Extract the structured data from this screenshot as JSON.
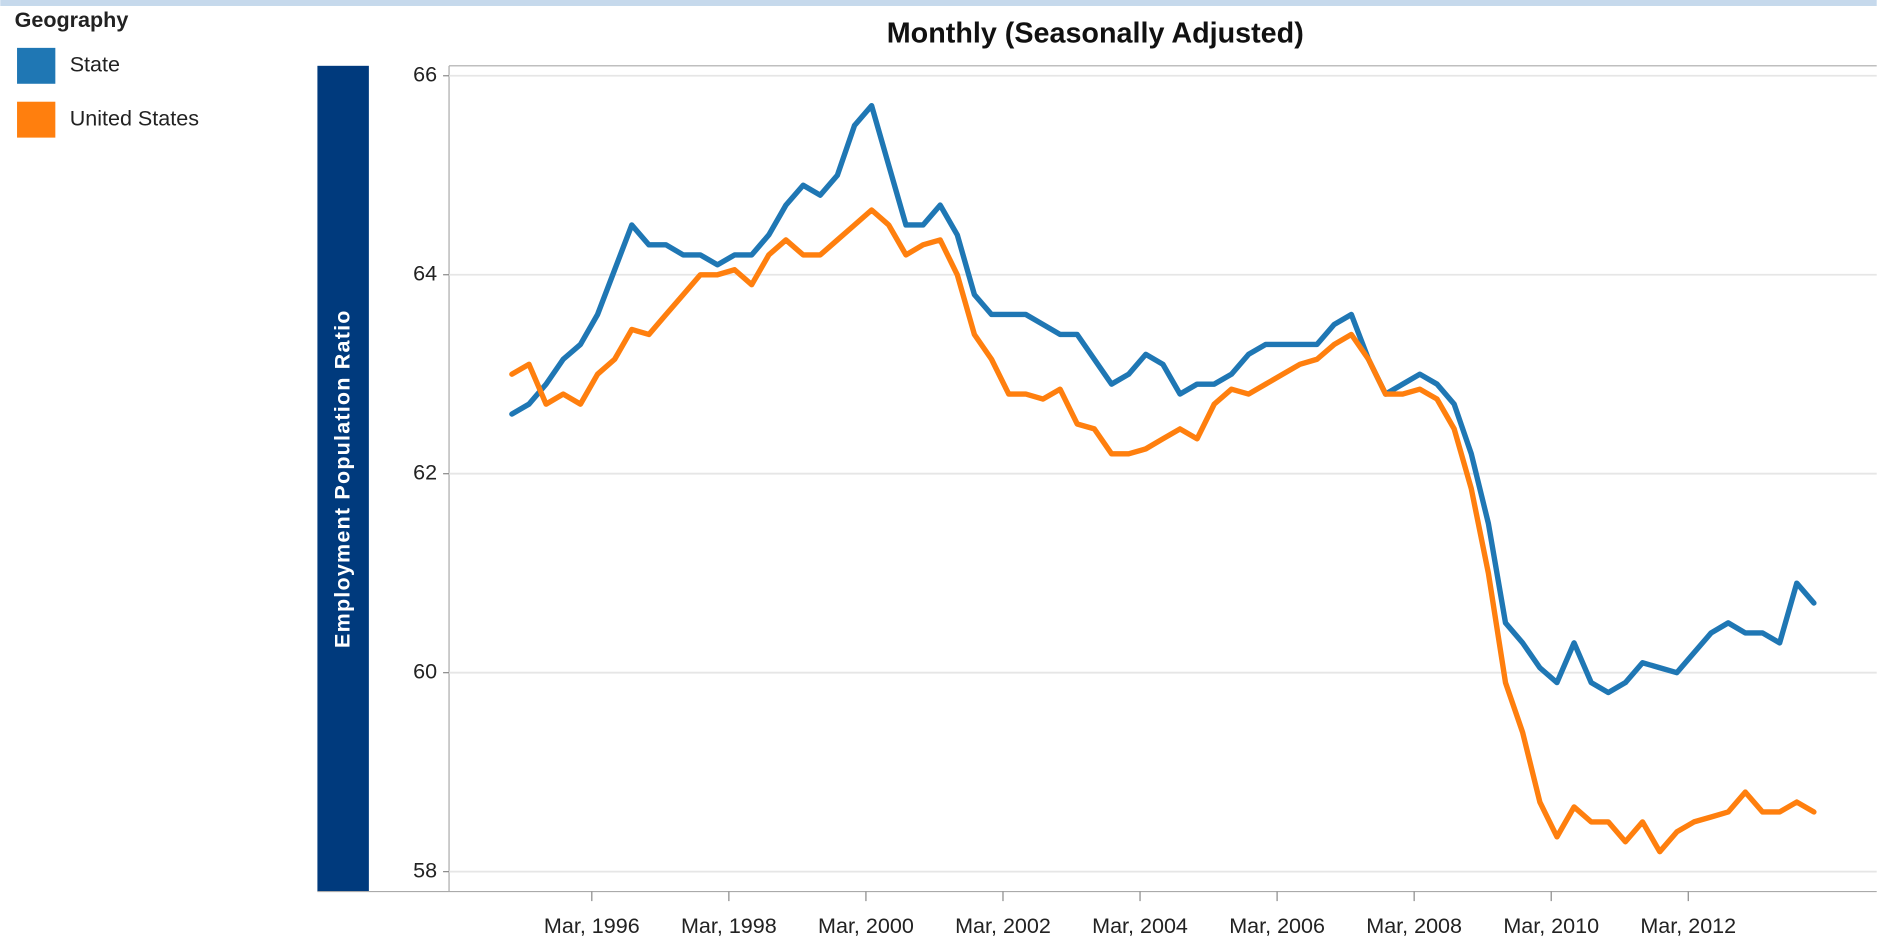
{
  "chart_data": {
    "type": "line",
    "title": "Monthly (Seasonally Adjusted)",
    "y_label": "Employment Population Ratio",
    "legend_title": "Geography",
    "legend": "top-left",
    "grid": true,
    "ylim": [
      57.8,
      66.1
    ],
    "yticks": [
      58,
      60,
      62,
      64,
      66
    ],
    "xlim": [
      "1994-02",
      "2014-12"
    ],
    "xticks": [
      {
        "value": "1996-03",
        "label": "Mar, 1996"
      },
      {
        "value": "1998-03",
        "label": "Mar, 1998"
      },
      {
        "value": "2000-03",
        "label": "Mar, 2000"
      },
      {
        "value": "2002-03",
        "label": "Mar, 2002"
      },
      {
        "value": "2004-03",
        "label": "Mar, 2004"
      },
      {
        "value": "2006-03",
        "label": "Mar, 2006"
      },
      {
        "value": "2008-03",
        "label": "Mar, 2008"
      },
      {
        "value": "2010-03",
        "label": "Mar, 2010"
      },
      {
        "value": "2012-03",
        "label": "Mar, 2012"
      }
    ],
    "x": [
      "1995-01",
      "1995-04",
      "1995-07",
      "1995-10",
      "1996-01",
      "1996-04",
      "1996-07",
      "1996-10",
      "1997-01",
      "1997-04",
      "1997-07",
      "1997-10",
      "1998-01",
      "1998-04",
      "1998-07",
      "1998-10",
      "1999-01",
      "1999-04",
      "1999-07",
      "1999-10",
      "2000-01",
      "2000-04",
      "2000-07",
      "2000-10",
      "2001-01",
      "2001-04",
      "2001-07",
      "2001-10",
      "2002-01",
      "2002-04",
      "2002-07",
      "2002-10",
      "2003-01",
      "2003-04",
      "2003-07",
      "2003-10",
      "2004-01",
      "2004-04",
      "2004-07",
      "2004-10",
      "2005-01",
      "2005-04",
      "2005-07",
      "2005-10",
      "2006-01",
      "2006-04",
      "2006-07",
      "2006-10",
      "2007-01",
      "2007-04",
      "2007-07",
      "2007-10",
      "2008-01",
      "2008-04",
      "2008-07",
      "2008-10",
      "2009-01",
      "2009-04",
      "2009-07",
      "2009-10",
      "2010-01",
      "2010-04",
      "2010-07",
      "2010-10",
      "2011-01",
      "2011-04",
      "2011-07",
      "2011-10",
      "2012-01",
      "2012-04",
      "2012-07",
      "2012-10",
      "2013-01",
      "2013-04",
      "2013-07",
      "2013-10",
      "2014-01"
    ],
    "series": [
      {
        "name": "State",
        "color": "#1f77b4",
        "values": [
          62.6,
          62.7,
          62.9,
          63.15,
          63.3,
          63.6,
          64.05,
          64.5,
          64.3,
          64.3,
          64.2,
          64.2,
          64.1,
          64.2,
          64.2,
          64.4,
          64.7,
          64.9,
          64.8,
          65.0,
          65.5,
          65.7,
          65.1,
          64.5,
          64.5,
          64.7,
          64.4,
          63.8,
          63.6,
          63.6,
          63.6,
          63.5,
          63.4,
          63.4,
          63.15,
          62.9,
          63.0,
          63.2,
          63.1,
          62.8,
          62.9,
          62.9,
          63.0,
          63.2,
          63.3,
          63.3,
          63.3,
          63.3,
          63.5,
          63.6,
          63.15,
          62.8,
          62.9,
          63.0,
          62.9,
          62.7,
          62.2,
          61.5,
          60.5,
          60.3,
          60.05,
          59.9,
          60.3,
          59.9,
          59.8,
          59.9,
          60.1,
          60.05,
          60.0,
          60.2,
          60.4,
          60.5,
          60.4,
          60.4,
          60.3,
          60.9,
          60.7
        ]
      },
      {
        "name": "United States",
        "color": "#ff7f0e",
        "values": [
          63.0,
          63.1,
          62.7,
          62.8,
          62.7,
          63.0,
          63.15,
          63.45,
          63.4,
          63.6,
          63.8,
          64.0,
          64.0,
          64.05,
          63.9,
          64.2,
          64.35,
          64.2,
          64.2,
          64.35,
          64.5,
          64.65,
          64.5,
          64.2,
          64.3,
          64.35,
          64.0,
          63.4,
          63.15,
          62.8,
          62.8,
          62.75,
          62.85,
          62.5,
          62.45,
          62.2,
          62.2,
          62.25,
          62.35,
          62.45,
          62.35,
          62.7,
          62.85,
          62.8,
          62.9,
          63.0,
          63.1,
          63.15,
          63.3,
          63.4,
          63.15,
          62.8,
          62.8,
          62.85,
          62.75,
          62.45,
          61.85,
          61.0,
          59.9,
          59.4,
          58.7,
          58.35,
          58.65,
          58.5,
          58.5,
          58.3,
          58.5,
          58.2,
          58.4,
          58.5,
          58.55,
          58.6,
          58.8,
          58.6,
          58.6,
          58.7,
          58.6
        ]
      }
    ]
  }
}
